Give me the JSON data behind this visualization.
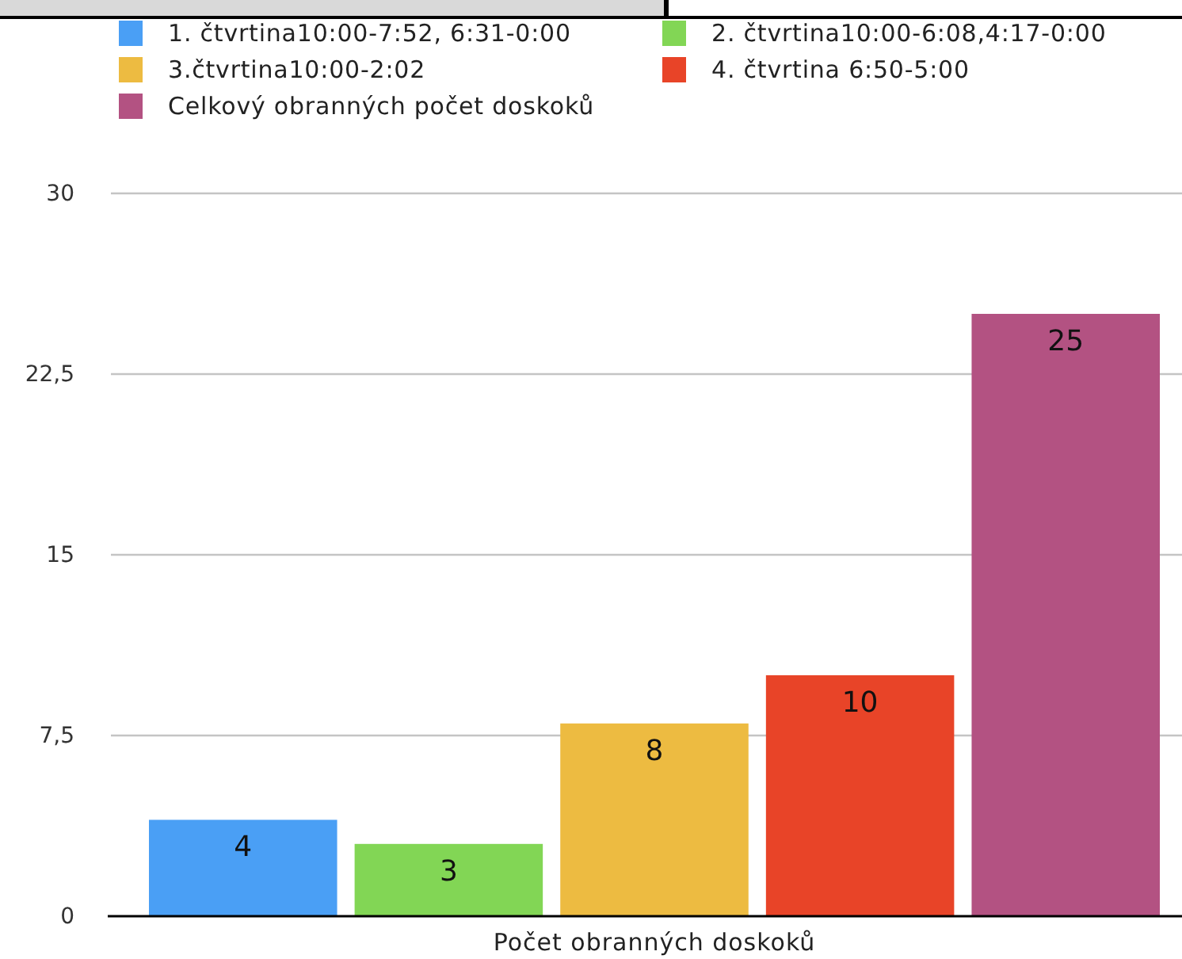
{
  "chart_data": {
    "type": "bar",
    "categories": [
      "Počet obranných doskoků"
    ],
    "series": [
      {
        "name": "1. čtvrtina10:00-7:52, 6:31-0:00",
        "color": "#4a9ff5",
        "values": [
          4
        ]
      },
      {
        "name": "2. čtvrtina10:00-6:08,4:17-0:00",
        "color": "#82d655",
        "values": [
          3
        ]
      },
      {
        "name": "3.čtvrtina10:00-2:02",
        "color": "#edbb41",
        "values": [
          8
        ]
      },
      {
        "name": "4. čtvrtina 6:50-5:00",
        "color": "#e84428",
        "values": [
          10
        ]
      },
      {
        "name": "Celkový obranných počet doskoků",
        "color": "#b35282",
        "values": [
          25
        ]
      }
    ],
    "ylim": [
      0,
      30
    ],
    "yticks": [
      0,
      {
        "value": 7.5,
        "label": "7,5"
      },
      15,
      {
        "value": 22.5,
        "label": "22,5"
      },
      30
    ],
    "grid": "y",
    "legend": "top",
    "data_labels": true
  }
}
